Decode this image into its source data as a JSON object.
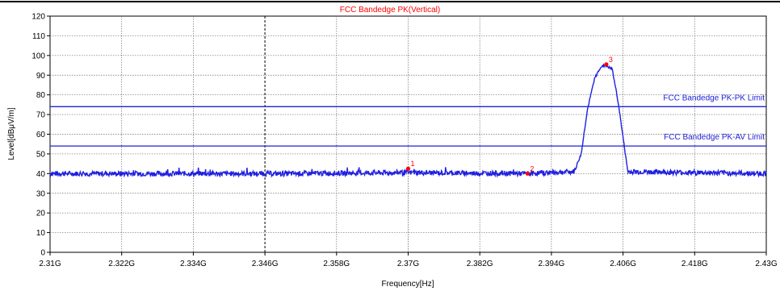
{
  "chart_data": {
    "type": "line",
    "title": "FCC Bandedge PK(Vertical)",
    "xlabel": "Frequency[Hz]",
    "ylabel": "Level[dBμV/m]",
    "x_unit": "GHz",
    "xlim": [
      2.31,
      2.43
    ],
    "ylim": [
      0,
      120
    ],
    "grid": true,
    "x_ticks": [
      {
        "value": 2.31,
        "label": "2.31G"
      },
      {
        "value": 2.322,
        "label": "2.322G"
      },
      {
        "value": 2.334,
        "label": "2.334G"
      },
      {
        "value": 2.346,
        "label": "2.346G"
      },
      {
        "value": 2.358,
        "label": "2.358G"
      },
      {
        "value": 2.37,
        "label": "2.37G"
      },
      {
        "value": 2.382,
        "label": "2.382G"
      },
      {
        "value": 2.394,
        "label": "2.394G"
      },
      {
        "value": 2.406,
        "label": "2.406G"
      },
      {
        "value": 2.418,
        "label": "2.418G"
      },
      {
        "value": 2.43,
        "label": "2.43G"
      }
    ],
    "y_ticks": [
      0,
      10,
      20,
      30,
      40,
      50,
      60,
      70,
      80,
      90,
      100,
      110,
      120
    ],
    "series": [
      {
        "color": "#1f1fe0",
        "noise_floor": 40,
        "x": [
          2.31,
          2.33,
          2.35,
          2.37,
          2.39,
          2.3978,
          2.399,
          2.4,
          2.4012,
          2.4022,
          2.403,
          2.4042,
          2.4052,
          2.4068,
          2.418,
          2.43
        ],
        "y": [
          40,
          40,
          40,
          40.5,
          40,
          41,
          50,
          72,
          88,
          94,
          95,
          93,
          76,
          41,
          40.5,
          40
        ]
      }
    ],
    "reference_lines": [
      {
        "label": "FCC Bandedge PK-PK Limit",
        "y": 74,
        "color": "#2020d8"
      },
      {
        "label": "FCC Bandedge PK-AV Limit",
        "y": 54,
        "color": "#2020d8"
      }
    ],
    "markers": [
      {
        "label": "1",
        "x": 2.37,
        "y": 42.5
      },
      {
        "label": "2",
        "x": 2.39,
        "y": 40.0
      },
      {
        "label": "3",
        "x": 2.4032,
        "y": 95.5
      }
    ],
    "highlight_vline_x": 2.346,
    "colors": {
      "title": "#ff0000",
      "marker": "#ff0000",
      "trace": "#1f1fe0",
      "limit": "#2020d8",
      "grid": "#6e6e6e"
    }
  }
}
